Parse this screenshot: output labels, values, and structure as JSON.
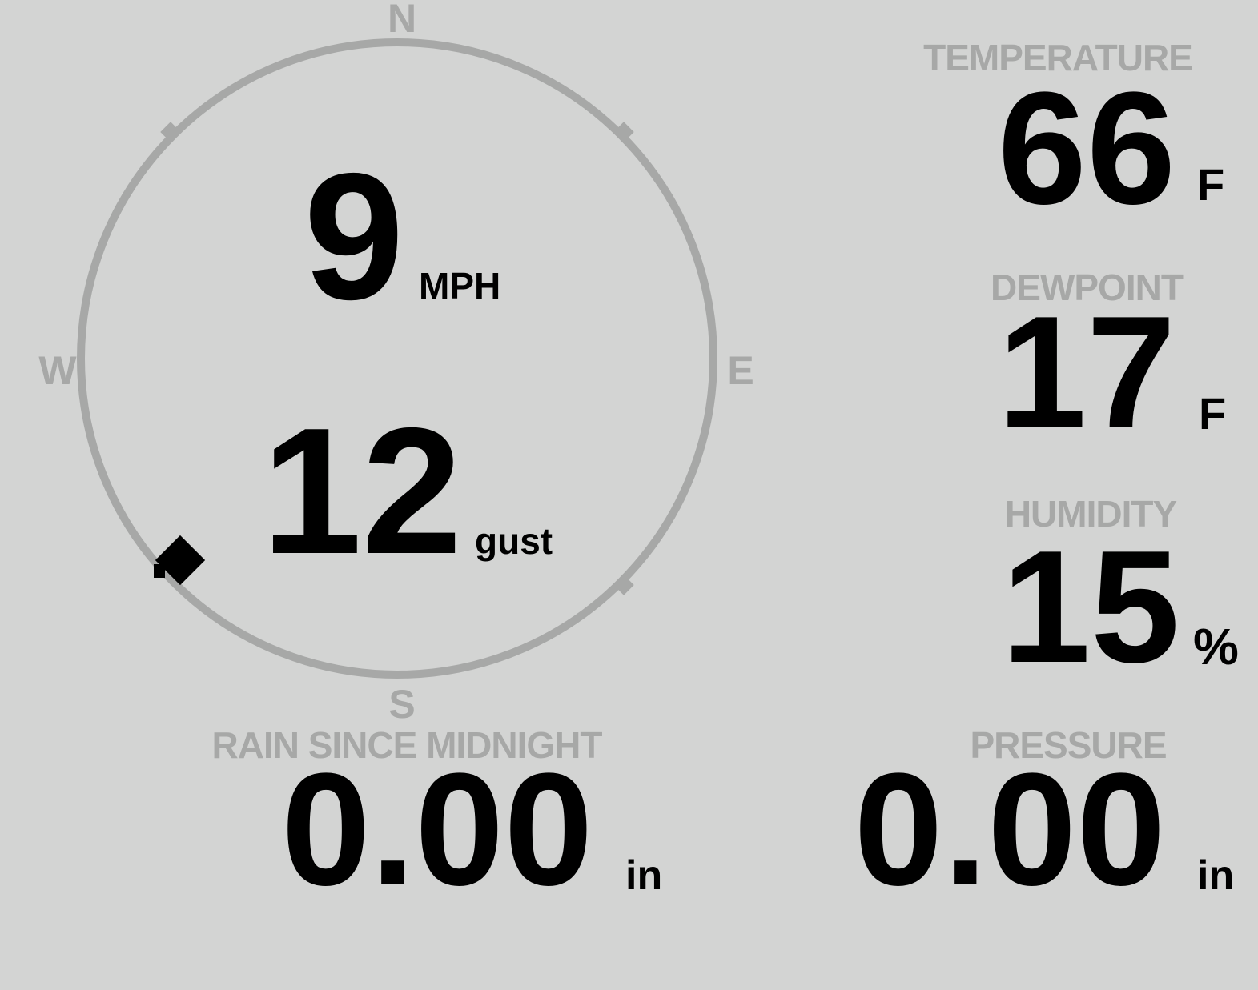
{
  "theme": {
    "background": "#d3d4d3",
    "muted": "#a7a8a7",
    "ink": "#000000"
  },
  "wind_gauge": {
    "compass": {
      "north": "N",
      "east": "E",
      "south": "S",
      "west": "W"
    },
    "speed": {
      "value": "9",
      "unit": "MPH"
    },
    "gust": {
      "value": "12",
      "unit": "gust"
    },
    "direction_deg": 227
  },
  "metrics": {
    "temperature": {
      "label": "TEMPERATURE",
      "value": "66",
      "unit": "F"
    },
    "dewpoint": {
      "label": "DEWPOINT",
      "value": "17",
      "unit": "F"
    },
    "humidity": {
      "label": "HUMIDITY",
      "value": "15",
      "unit": "%"
    },
    "rain": {
      "label": "RAIN SINCE MIDNIGHT",
      "value": "0.00",
      "unit": "in"
    },
    "pressure": {
      "label": "PRESSURE",
      "value": "0.00",
      "unit": "in"
    }
  }
}
